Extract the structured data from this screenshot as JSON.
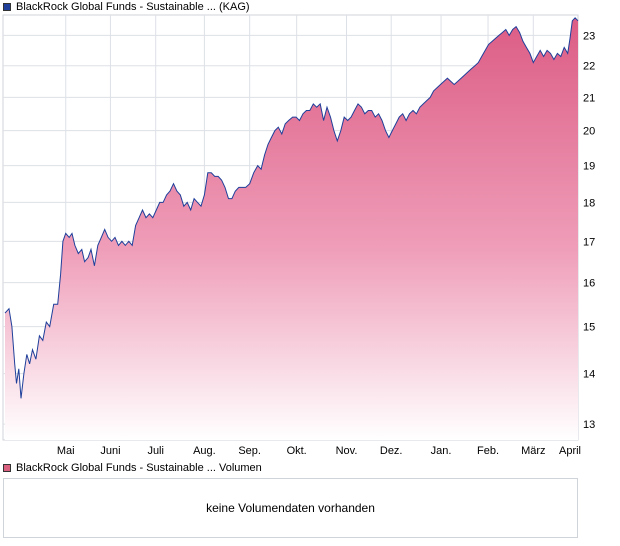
{
  "legend": {
    "price_label": "BlackRock Global Funds - Sustainable ... (KAG)",
    "price_color": "#1f3f9a",
    "volume_label": "BlackRock Global Funds - Sustainable ... Volumen",
    "volume_color": "#d9607e"
  },
  "volume": {
    "message": "keine Volumendaten vorhanden"
  },
  "chart_data": {
    "type": "area",
    "title": "",
    "xlabel": "",
    "ylabel": "",
    "ylim": [
      12.7,
      23.7
    ],
    "y_scale": "log",
    "y_ticks": [
      13,
      14,
      15,
      16,
      17,
      18,
      19,
      20,
      21,
      22,
      23
    ],
    "x_ticks": [
      {
        "label": "Mai",
        "t": 0.106
      },
      {
        "label": "Juni",
        "t": 0.184
      },
      {
        "label": "Juli",
        "t": 0.263
      },
      {
        "label": "Aug.",
        "t": 0.348
      },
      {
        "label": "Sep.",
        "t": 0.427
      },
      {
        "label": "Okt.",
        "t": 0.509
      },
      {
        "label": "Nov.",
        "t": 0.596
      },
      {
        "label": "Dez.",
        "t": 0.674
      },
      {
        "label": "Jan.",
        "t": 0.761
      },
      {
        "label": "Feb.",
        "t": 0.843
      },
      {
        "label": "März",
        "t": 0.922
      },
      {
        "label": "April",
        "t": 1.016
      }
    ],
    "series": [
      {
        "points": [
          [
            0.0,
            15.3
          ],
          [
            0.007,
            15.4
          ],
          [
            0.012,
            15.0
          ],
          [
            0.017,
            14.2
          ],
          [
            0.02,
            13.8
          ],
          [
            0.024,
            14.1
          ],
          [
            0.028,
            13.5
          ],
          [
            0.033,
            14.0
          ],
          [
            0.038,
            14.4
          ],
          [
            0.043,
            14.2
          ],
          [
            0.048,
            14.5
          ],
          [
            0.054,
            14.3
          ],
          [
            0.06,
            14.8
          ],
          [
            0.066,
            14.7
          ],
          [
            0.072,
            15.1
          ],
          [
            0.078,
            15.0
          ],
          [
            0.085,
            15.5
          ],
          [
            0.092,
            15.5
          ],
          [
            0.097,
            16.2
          ],
          [
            0.101,
            17.0
          ],
          [
            0.106,
            17.2
          ],
          [
            0.112,
            17.1
          ],
          [
            0.117,
            17.2
          ],
          [
            0.122,
            16.9
          ],
          [
            0.128,
            16.7
          ],
          [
            0.134,
            16.8
          ],
          [
            0.139,
            16.5
          ],
          [
            0.145,
            16.6
          ],
          [
            0.15,
            16.8
          ],
          [
            0.156,
            16.4
          ],
          [
            0.162,
            16.9
          ],
          [
            0.168,
            17.1
          ],
          [
            0.174,
            17.3
          ],
          [
            0.18,
            17.1
          ],
          [
            0.186,
            17.0
          ],
          [
            0.192,
            17.1
          ],
          [
            0.198,
            16.9
          ],
          [
            0.204,
            17.0
          ],
          [
            0.21,
            16.9
          ],
          [
            0.216,
            17.0
          ],
          [
            0.222,
            16.9
          ],
          [
            0.228,
            17.4
          ],
          [
            0.234,
            17.6
          ],
          [
            0.24,
            17.8
          ],
          [
            0.246,
            17.6
          ],
          [
            0.252,
            17.7
          ],
          [
            0.258,
            17.6
          ],
          [
            0.264,
            17.8
          ],
          [
            0.27,
            18.0
          ],
          [
            0.276,
            18.0
          ],
          [
            0.282,
            18.2
          ],
          [
            0.288,
            18.3
          ],
          [
            0.294,
            18.5
          ],
          [
            0.3,
            18.3
          ],
          [
            0.306,
            18.2
          ],
          [
            0.312,
            17.9
          ],
          [
            0.318,
            18.0
          ],
          [
            0.324,
            17.8
          ],
          [
            0.33,
            18.1
          ],
          [
            0.336,
            18.0
          ],
          [
            0.342,
            17.9
          ],
          [
            0.348,
            18.2
          ],
          [
            0.354,
            18.8
          ],
          [
            0.36,
            18.8
          ],
          [
            0.366,
            18.7
          ],
          [
            0.372,
            18.7
          ],
          [
            0.378,
            18.6
          ],
          [
            0.384,
            18.4
          ],
          [
            0.39,
            18.1
          ],
          [
            0.396,
            18.1
          ],
          [
            0.402,
            18.3
          ],
          [
            0.408,
            18.4
          ],
          [
            0.414,
            18.4
          ],
          [
            0.42,
            18.4
          ],
          [
            0.427,
            18.5
          ],
          [
            0.434,
            18.8
          ],
          [
            0.441,
            19.0
          ],
          [
            0.447,
            18.9
          ],
          [
            0.453,
            19.3
          ],
          [
            0.459,
            19.6
          ],
          [
            0.465,
            19.8
          ],
          [
            0.471,
            20.0
          ],
          [
            0.477,
            20.1
          ],
          [
            0.483,
            19.9
          ],
          [
            0.489,
            20.2
          ],
          [
            0.495,
            20.3
          ],
          [
            0.502,
            20.4
          ],
          [
            0.508,
            20.4
          ],
          [
            0.514,
            20.3
          ],
          [
            0.52,
            20.5
          ],
          [
            0.526,
            20.6
          ],
          [
            0.532,
            20.6
          ],
          [
            0.538,
            20.8
          ],
          [
            0.544,
            20.7
          ],
          [
            0.55,
            20.8
          ],
          [
            0.556,
            20.3
          ],
          [
            0.562,
            20.7
          ],
          [
            0.568,
            20.4
          ],
          [
            0.574,
            20.0
          ],
          [
            0.58,
            19.7
          ],
          [
            0.586,
            20.0
          ],
          [
            0.592,
            20.4
          ],
          [
            0.598,
            20.3
          ],
          [
            0.604,
            20.4
          ],
          [
            0.61,
            20.6
          ],
          [
            0.616,
            20.8
          ],
          [
            0.622,
            20.7
          ],
          [
            0.628,
            20.5
          ],
          [
            0.634,
            20.6
          ],
          [
            0.64,
            20.6
          ],
          [
            0.646,
            20.4
          ],
          [
            0.652,
            20.5
          ],
          [
            0.658,
            20.3
          ],
          [
            0.664,
            20.0
          ],
          [
            0.67,
            19.8
          ],
          [
            0.676,
            20.0
          ],
          [
            0.682,
            20.2
          ],
          [
            0.688,
            20.4
          ],
          [
            0.694,
            20.5
          ],
          [
            0.7,
            20.3
          ],
          [
            0.706,
            20.5
          ],
          [
            0.712,
            20.6
          ],
          [
            0.718,
            20.5
          ],
          [
            0.724,
            20.7
          ],
          [
            0.73,
            20.8
          ],
          [
            0.736,
            20.9
          ],
          [
            0.742,
            21.0
          ],
          [
            0.748,
            21.2
          ],
          [
            0.754,
            21.3
          ],
          [
            0.76,
            21.4
          ],
          [
            0.766,
            21.5
          ],
          [
            0.772,
            21.6
          ],
          [
            0.778,
            21.5
          ],
          [
            0.784,
            21.4
          ],
          [
            0.79,
            21.5
          ],
          [
            0.796,
            21.6
          ],
          [
            0.802,
            21.7
          ],
          [
            0.808,
            21.8
          ],
          [
            0.814,
            21.9
          ],
          [
            0.82,
            22.0
          ],
          [
            0.826,
            22.1
          ],
          [
            0.832,
            22.3
          ],
          [
            0.838,
            22.5
          ],
          [
            0.844,
            22.7
          ],
          [
            0.85,
            22.8
          ],
          [
            0.856,
            22.9
          ],
          [
            0.862,
            23.0
          ],
          [
            0.868,
            23.1
          ],
          [
            0.874,
            23.2
          ],
          [
            0.88,
            23.0
          ],
          [
            0.886,
            23.2
          ],
          [
            0.892,
            23.3
          ],
          [
            0.898,
            23.1
          ],
          [
            0.904,
            22.8
          ],
          [
            0.91,
            22.6
          ],
          [
            0.916,
            22.4
          ],
          [
            0.922,
            22.1
          ],
          [
            0.928,
            22.3
          ],
          [
            0.934,
            22.5
          ],
          [
            0.94,
            22.3
          ],
          [
            0.946,
            22.5
          ],
          [
            0.952,
            22.4
          ],
          [
            0.958,
            22.2
          ],
          [
            0.964,
            22.4
          ],
          [
            0.97,
            22.3
          ],
          [
            0.976,
            22.6
          ],
          [
            0.982,
            22.4
          ],
          [
            0.986,
            22.9
          ],
          [
            0.99,
            23.5
          ],
          [
            0.995,
            23.6
          ],
          [
            1.0,
            23.5
          ]
        ]
      }
    ]
  }
}
